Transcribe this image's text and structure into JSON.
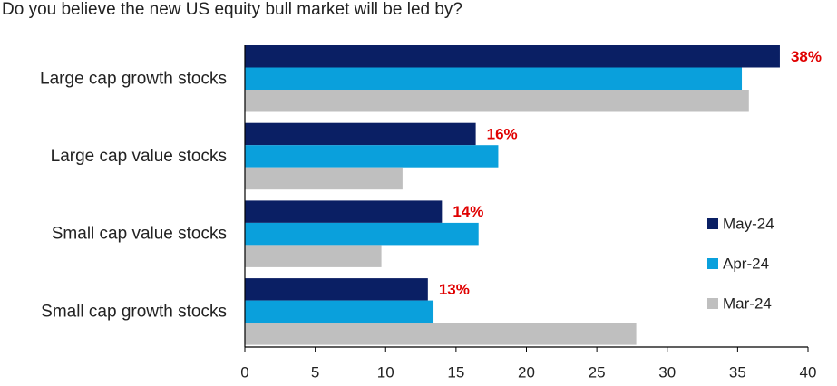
{
  "chart_data": {
    "type": "bar",
    "orientation": "horizontal",
    "title": "Do you believe the new US equity bull market will be led by?",
    "categories": [
      "Large cap growth stocks",
      "Large cap value stocks",
      "Small cap value stocks",
      "Small cap growth stocks"
    ],
    "series": [
      {
        "name": "May-24",
        "color": "#0a1f64",
        "values": [
          38,
          16.4,
          14,
          13
        ]
      },
      {
        "name": "Apr-24",
        "color": "#0aa0dc",
        "values": [
          35.3,
          18,
          16.6,
          13.4
        ]
      },
      {
        "name": "Mar-24",
        "color": "#bfbfbf",
        "values": [
          35.8,
          11.2,
          9.7,
          27.8
        ]
      }
    ],
    "data_labels": [
      "38%",
      "16%",
      "14%",
      "13%"
    ],
    "data_label_color": "#e00000",
    "xlim": [
      0,
      40
    ],
    "xticks": [
      0,
      5,
      10,
      15,
      20,
      25,
      30,
      35,
      40
    ],
    "legend_position": "right",
    "grid": false
  }
}
